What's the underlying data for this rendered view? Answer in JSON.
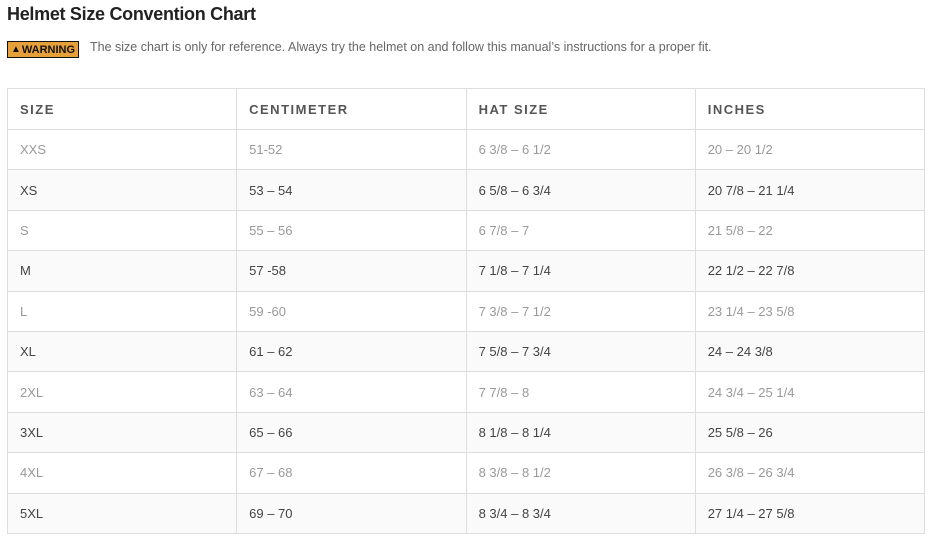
{
  "title": "Helmet Size Convention Chart",
  "warning": {
    "badge": "WARNING",
    "icon": "warning-triangle-icon",
    "text": "The size chart is only for reference. Always try the helmet on and follow this manual’s instructions for a proper fit.",
    "badge_color": "#e6a03a"
  },
  "table": {
    "headers": [
      "SIZE",
      "CENTIMETER",
      "HAT SIZE",
      "INCHES"
    ],
    "rows": [
      [
        "XXS",
        "51-52",
        "6 3/8 – 6 1/2",
        "20 – 20 1/2"
      ],
      [
        "XS",
        "53 – 54",
        "6 5/8 – 6 3/4",
        "20 7/8 – 21 1/4"
      ],
      [
        "S",
        "55 – 56",
        "6 7/8 – 7",
        "21 5/8 – 22"
      ],
      [
        "M",
        "57 -58",
        "7 1/8 – 7 1/4",
        "22 1/2 – 22 7/8"
      ],
      [
        "L",
        "59 -60",
        "7 3/8 – 7 1/2",
        "23 1/4 – 23 5/8"
      ],
      [
        "XL",
        "61 – 62",
        "7 5/8 – 7 3/4",
        "24 – 24 3/8"
      ],
      [
        "2XL",
        "63 – 64",
        "7 7/8 – 8",
        "24 3/4 – 25 1/4"
      ],
      [
        "3XL",
        "65 – 66",
        "8 1/8 – 8 1/4",
        "25 5/8 – 26"
      ],
      [
        "4XL",
        "67 – 68",
        "8 3/8 – 8 1/2",
        "26 3/8 – 26 3/4"
      ],
      [
        "5XL",
        "69 – 70",
        "8 3/4 – 8 3/4",
        "27 1/4 – 27 5/8"
      ]
    ]
  }
}
